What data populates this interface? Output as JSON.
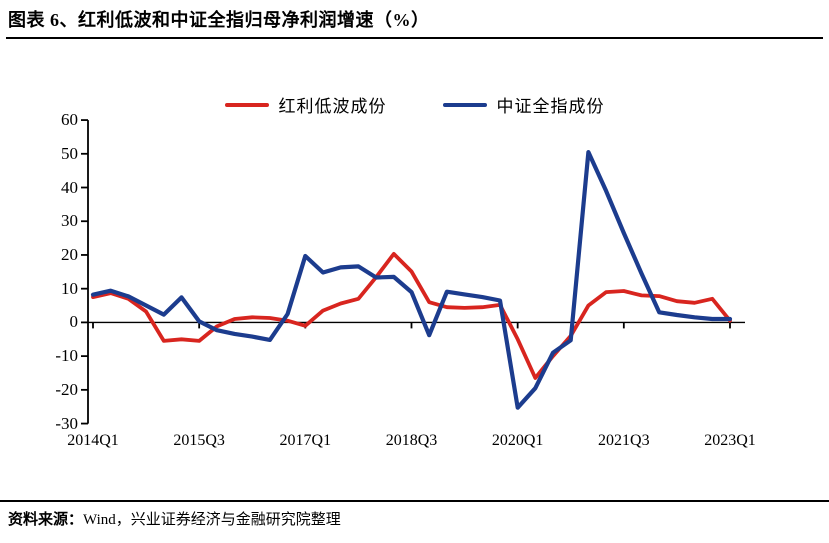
{
  "title": "图表 6、红利低波和中证全指归母净利润增速（%）",
  "footer": {
    "label": "资料来源：",
    "text": "Wind，兴业证券经济与金融研究院整理"
  },
  "colors": {
    "red": "#d8251f",
    "blue": "#1c3c8e",
    "axis": "#000000"
  },
  "chart_data": {
    "type": "line",
    "title": "图表 6、红利低波和中证全指归母净利润增速（%）",
    "ylabel": "",
    "xlabel": "",
    "ylim": [
      -30,
      60
    ],
    "yticks": [
      60,
      50,
      40,
      30,
      20,
      10,
      0,
      -10,
      -20,
      -30
    ],
    "grid": false,
    "legend_position": "top",
    "x": [
      "2014Q1",
      "2014Q2",
      "2014Q3",
      "2014Q4",
      "2015Q1",
      "2015Q2",
      "2015Q3",
      "2015Q4",
      "2016Q1",
      "2016Q2",
      "2016Q3",
      "2016Q4",
      "2017Q1",
      "2017Q2",
      "2017Q3",
      "2017Q4",
      "2018Q1",
      "2018Q2",
      "2018Q3",
      "2018Q4",
      "2019Q1",
      "2019Q2",
      "2019Q3",
      "2019Q4",
      "2020Q1",
      "2020Q2",
      "2020Q3",
      "2020Q4",
      "2021Q1",
      "2021Q2",
      "2021Q3",
      "2021Q4",
      "2022Q1",
      "2022Q2",
      "2022Q3",
      "2022Q4",
      "2023Q1"
    ],
    "xtick_labels": [
      "2014Q1",
      "2015Q3",
      "2017Q1",
      "2018Q3",
      "2020Q1",
      "2021Q3",
      "2023Q1"
    ],
    "xtick_indices": [
      0,
      6,
      12,
      18,
      24,
      30,
      36
    ],
    "series": [
      {
        "name": "红利低波成份",
        "color_key": "red",
        "values": [
          7.5,
          8.7,
          7.0,
          3.2,
          -5.5,
          -5.0,
          -5.5,
          -1.2,
          1.0,
          1.5,
          1.3,
          0.5,
          -1.0,
          3.5,
          5.6,
          7.0,
          13.4,
          20.3,
          15.1,
          6.0,
          4.5,
          4.3,
          4.5,
          5.2,
          -5.0,
          -16.5,
          -10.0,
          -4.0,
          5.0,
          9.0,
          9.3,
          8.0,
          7.8,
          6.3,
          5.8,
          7.0,
          0.5
        ]
      },
      {
        "name": "中证全指成份",
        "color_key": "blue",
        "values": [
          8.2,
          9.4,
          7.7,
          5.0,
          2.3,
          7.4,
          0.3,
          -2.3,
          -3.4,
          -4.2,
          -5.2,
          2.5,
          19.7,
          14.8,
          16.3,
          16.6,
          13.3,
          13.5,
          9.0,
          -3.8,
          9.1,
          8.3,
          7.5,
          6.5,
          -25.3,
          -19.5,
          -9.0,
          -5.3,
          50.5,
          39.0,
          26.5,
          14.5,
          3.0,
          2.2,
          1.5,
          1.0,
          1.0
        ]
      }
    ]
  }
}
